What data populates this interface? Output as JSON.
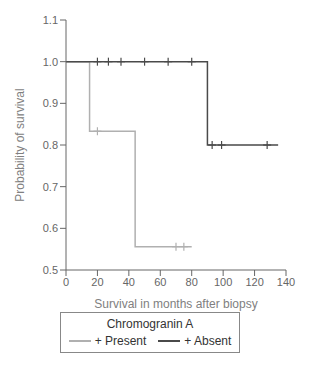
{
  "chart_data": {
    "type": "step",
    "xlabel": "Survival in months after biopsy",
    "ylabel": "Probability of survival",
    "xlim": [
      0,
      140
    ],
    "ylim": [
      0.5,
      1.1
    ],
    "xticks": [
      0,
      20,
      40,
      60,
      80,
      100,
      120,
      140
    ],
    "yticks": [
      0.5,
      0.6,
      0.7,
      0.8,
      0.9,
      {
        "value": 1.0,
        "label": "1.0"
      },
      1.1
    ],
    "grid": false,
    "legend": "bottom",
    "legend_title": "Chromogranin A",
    "series": [
      {
        "name": "+ Present",
        "color": "#b0b0b0",
        "marker": "plus",
        "x": [
          0,
          15,
          15,
          44,
          44,
          80
        ],
        "values": [
          1.0,
          1.0,
          0.833,
          0.833,
          0.556,
          0.556
        ],
        "censor_x": [
          20,
          70,
          75
        ],
        "censor_y": [
          0.833,
          0.556,
          0.556
        ]
      },
      {
        "name": "+ Absent",
        "color": "#4a4a4a",
        "marker": "plus",
        "x": [
          0,
          90,
          90,
          135
        ],
        "values": [
          1.0,
          1.0,
          0.8,
          0.8
        ],
        "censor_x": [
          20,
          27,
          35,
          50,
          65,
          80,
          93,
          99,
          128
        ],
        "censor_y": [
          1.0,
          1.0,
          1.0,
          1.0,
          1.0,
          1.0,
          0.8,
          0.8,
          0.8
        ]
      }
    ]
  }
}
